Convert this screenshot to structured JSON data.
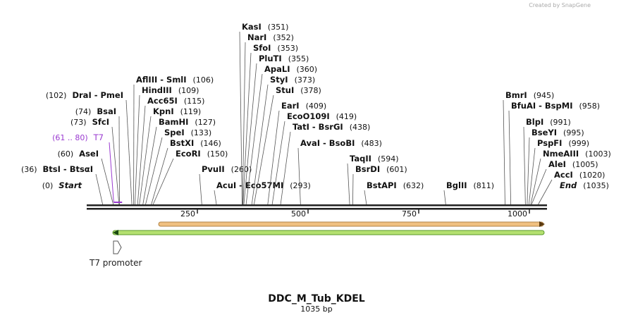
{
  "watermark": "Created by SnapGene",
  "title": "DDC_M_Tub_KDEL",
  "length_label": "1035 bp",
  "sites": [
    {
      "name": "Start",
      "position": 0,
      "position_label": "(0)"
    },
    {
      "name": "BtsI - BtsαI",
      "position": 36,
      "position_label": "(36)"
    },
    {
      "name": "AseI",
      "position": 60,
      "position_label": "(60)"
    },
    {
      "name": "SfcI",
      "position": 73,
      "position_label": "(73)"
    },
    {
      "name": "BsaI",
      "position": 74,
      "position_label": "(74)"
    },
    {
      "name": "DraI - PmeI",
      "position": 102,
      "position_label": "(102)"
    },
    {
      "name": "AflIII - SmlI",
      "position": 106,
      "position_label": "(106)"
    },
    {
      "name": "HindIII",
      "position": 109,
      "position_label": "(109)"
    },
    {
      "name": "Acc65I",
      "position": 115,
      "position_label": "(115)"
    },
    {
      "name": "KpnI",
      "position": 119,
      "position_label": "(119)"
    },
    {
      "name": "BamHI",
      "position": 127,
      "position_label": "(127)"
    },
    {
      "name": "SpeI",
      "position": 133,
      "position_label": "(133)"
    },
    {
      "name": "BstXI",
      "position": 146,
      "position_label": "(146)"
    },
    {
      "name": "EcoRI",
      "position": 150,
      "position_label": "(150)"
    },
    {
      "name": "PvuII",
      "position": 260,
      "position_label": "(260)"
    },
    {
      "name": "AcuI - Eco57MI",
      "position": 293,
      "position_label": "(293)"
    },
    {
      "name": "KasI",
      "position": 351,
      "position_label": "(351)"
    },
    {
      "name": "NarI",
      "position": 352,
      "position_label": "(352)"
    },
    {
      "name": "SfoI",
      "position": 353,
      "position_label": "(353)"
    },
    {
      "name": "PluTI",
      "position": 355,
      "position_label": "(355)"
    },
    {
      "name": "ApaLI",
      "position": 360,
      "position_label": "(360)"
    },
    {
      "name": "StyI",
      "position": 373,
      "position_label": "(373)"
    },
    {
      "name": "StuI",
      "position": 378,
      "position_label": "(378)"
    },
    {
      "name": "EarI",
      "position": 409,
      "position_label": "(409)"
    },
    {
      "name": "EcoO109I",
      "position": 419,
      "position_label": "(419)"
    },
    {
      "name": "TatI - BsrGI",
      "position": 438,
      "position_label": "(438)"
    },
    {
      "name": "AvaI - BsoBI",
      "position": 483,
      "position_label": "(483)"
    },
    {
      "name": "TaqII",
      "position": 594,
      "position_label": "(594)"
    },
    {
      "name": "BsrDI",
      "position": 601,
      "position_label": "(601)"
    },
    {
      "name": "BstAPI",
      "position": 632,
      "position_label": "(632)"
    },
    {
      "name": "BglII",
      "position": 811,
      "position_label": "(811)"
    },
    {
      "name": "BmrI",
      "position": 945,
      "position_label": "(945)"
    },
    {
      "name": "BfuAI - BspMI",
      "position": 958,
      "position_label": "(958)"
    },
    {
      "name": "BlpI",
      "position": 991,
      "position_label": "(991)"
    },
    {
      "name": "BseYI",
      "position": 995,
      "position_label": "(995)"
    },
    {
      "name": "PspFI",
      "position": 999,
      "position_label": "(999)"
    },
    {
      "name": "NmeAIII",
      "position": 1003,
      "position_label": "(1003)"
    },
    {
      "name": "AleI",
      "position": 1005,
      "position_label": "(1005)"
    },
    {
      "name": "AccI",
      "position": 1020,
      "position_label": "(1020)"
    },
    {
      "name": "End",
      "position": 1035,
      "position_label": "(1035)"
    }
  ],
  "t7_site": {
    "name": "T7",
    "start": 61,
    "end": 80,
    "position_label": "(61 .. 80)"
  },
  "ticks": [
    250,
    500,
    750,
    1000
  ],
  "feature_label": "T7 promoter"
}
